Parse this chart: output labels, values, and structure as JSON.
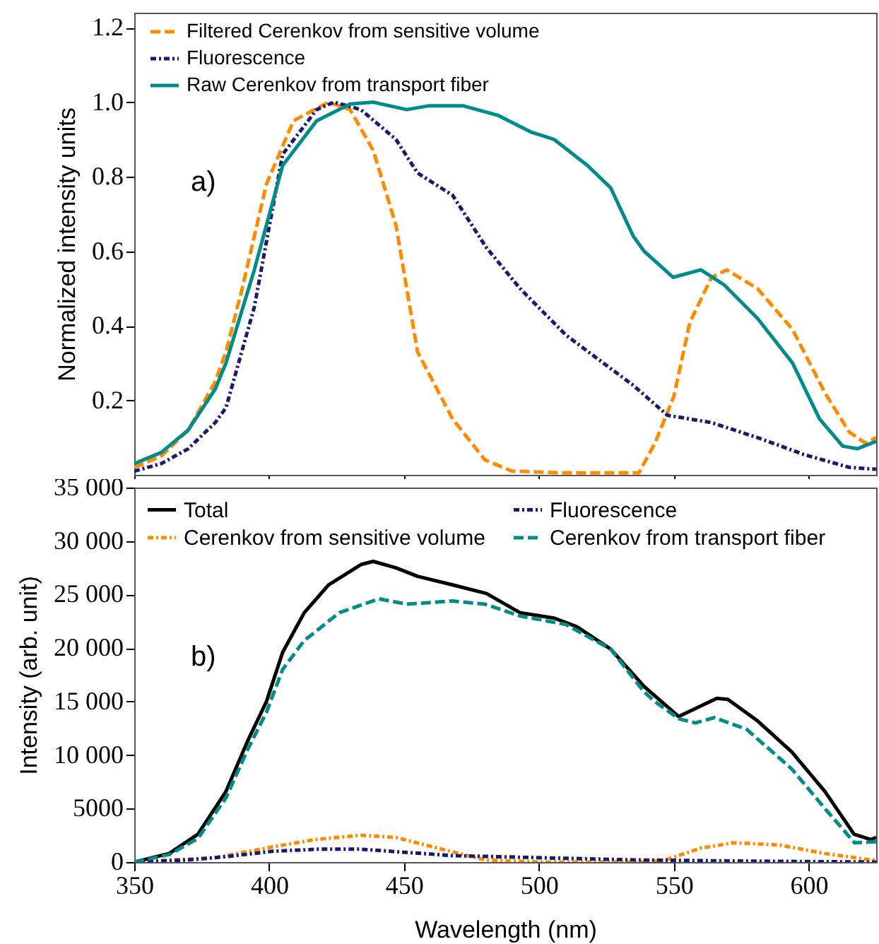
{
  "chart_data": [
    {
      "type": "line",
      "ylabel": "Normalized intensity units",
      "annotations": [
        "a)"
      ],
      "xlim": [
        350,
        625
      ],
      "xticks": [
        350,
        400,
        450,
        500,
        550,
        600
      ],
      "ylim": [
        0,
        1.24
      ],
      "yticks": [
        0.2,
        0.4,
        0.6,
        0.8,
        {
          "value": 1,
          "label": "1.0"
        },
        1.2
      ],
      "tick_labels": "y",
      "legend": "top left",
      "series": [
        {
          "name": "Filtered Cerenkov from sensitive volume",
          "color": "#ff8c00",
          "line_style": "dashed",
          "x": [
            350,
            360,
            370,
            380,
            384,
            390,
            399,
            409,
            422,
            430,
            438.6,
            447,
            455,
            468,
            480,
            490,
            510,
            537,
            543,
            550,
            556,
            564,
            569.6,
            581,
            594,
            606,
            615,
            621,
            625
          ],
          "values": [
            0.02,
            0.05,
            0.12,
            0.25,
            0.33,
            0.5,
            0.78,
            0.95,
            1.0,
            0.98,
            0.87,
            0.67,
            0.33,
            0.15,
            0.04,
            0.01,
            0.005,
            0.005,
            0.085,
            0.21,
            0.41,
            0.53,
            0.55,
            0.5,
            0.39,
            0.22,
            0.115,
            0.085,
            0.1
          ]
        },
        {
          "name": "Fluorescence",
          "color": "#191970",
          "line_style": "dotted",
          "x": [
            350,
            360,
            370,
            380,
            384,
            394.5,
            405,
            417.6,
            424,
            434,
            447,
            455,
            468,
            480.5,
            493,
            510,
            522,
            535,
            547.6,
            564,
            581,
            598,
            615,
            625
          ],
          "values": [
            0.01,
            0.03,
            0.07,
            0.14,
            0.18,
            0.45,
            0.86,
            0.98,
            1.0,
            0.98,
            0.9,
            0.81,
            0.75,
            0.61,
            0.5,
            0.375,
            0.31,
            0.24,
            0.16,
            0.14,
            0.1,
            0.055,
            0.02,
            0.015
          ]
        },
        {
          "name": "Raw Cerenkov from transport fiber",
          "color": "#008b8b",
          "line_style": "solid",
          "x": [
            350,
            360,
            370,
            380,
            384,
            394.5,
            405,
            417.6,
            430,
            438.6,
            451,
            459,
            472,
            484.7,
            497,
            505.6,
            518,
            526.6,
            535,
            539,
            549.7,
            560,
            568.6,
            581,
            594,
            604,
            612.6,
            618,
            625
          ],
          "values": [
            0.03,
            0.06,
            0.12,
            0.23,
            0.3,
            0.55,
            0.83,
            0.95,
            0.995,
            1.0,
            0.98,
            0.99,
            0.99,
            0.965,
            0.92,
            0.9,
            0.83,
            0.77,
            0.64,
            0.6,
            0.53,
            0.55,
            0.51,
            0.42,
            0.3,
            0.15,
            0.077,
            0.07,
            0.09
          ]
        }
      ]
    },
    {
      "type": "line",
      "xlabel": "Wavelength (nm)",
      "ylabel": "Intensity (arb. unit)",
      "annotations": [
        "b)"
      ],
      "xlim": [
        350,
        625
      ],
      "xticks": [
        350,
        400,
        450,
        500,
        550,
        600
      ],
      "ylim": [
        0,
        35000
      ],
      "yticks": [
        0,
        5000,
        {
          "value": 10000,
          "label": "10 000"
        },
        {
          "value": 15000,
          "label": "15 000"
        },
        {
          "value": 20000,
          "label": "20 000"
        },
        {
          "value": 25000,
          "label": "25 000"
        },
        {
          "value": 30000,
          "label": "30 000"
        },
        {
          "value": 35000,
          "label": "35 000"
        }
      ],
      "legend": "top",
      "series": [
        {
          "name": "Total",
          "color": "#000000",
          "line_style": "solid",
          "x": [
            350,
            363,
            373.6,
            384,
            392,
            399,
            405,
            413,
            422,
            434,
            438.6,
            447,
            455,
            468,
            480.5,
            493,
            505.6,
            514,
            526.6,
            539,
            551.8,
            566,
            570,
            581,
            593.7,
            606,
            616.8,
            623,
            625
          ],
          "values": [
            0,
            800,
            2600,
            6600,
            11300,
            15000,
            19600,
            23300,
            25900,
            27800,
            28100,
            27500,
            26700,
            25900,
            25100,
            23300,
            22800,
            22000,
            19900,
            16400,
            13600,
            15300,
            15200,
            13200,
            10300,
            6600,
            2600,
            2100,
            2300
          ]
        },
        {
          "name": "Cerenkov from sensitive volume",
          "color": "#ff8c00",
          "line_style": "dotted",
          "x": [
            350,
            380,
            401,
            417,
            434,
            447,
            464,
            480,
            500,
            540,
            547,
            560,
            572,
            589,
            606,
            623,
            625
          ],
          "values": [
            0,
            400,
            1400,
            2100,
            2500,
            2300,
            1200,
            200,
            0,
            0,
            200,
            1300,
            1800,
            1600,
            800,
            200,
            200
          ]
        },
        {
          "name": "Fluorescence",
          "color": "#191970",
          "line_style": "dotted",
          "x": [
            350,
            370,
            384,
            401,
            418,
            434,
            468,
            501,
            535,
            572,
            625
          ],
          "values": [
            0,
            200,
            500,
            1000,
            1200,
            1200,
            600,
            400,
            200,
            100,
            0
          ]
        },
        {
          "name": "Cerenkov from transport fiber",
          "color": "#008b8b",
          "line_style": "dashed",
          "x": [
            350,
            363,
            373.6,
            384,
            392,
            399,
            405,
            413,
            426,
            440.7,
            451,
            468,
            480,
            493,
            510,
            526.6,
            539,
            543,
            551.8,
            558,
            565,
            577,
            593.7,
            606,
            617,
            625
          ],
          "values": [
            0,
            700,
            2200,
            6000,
            10500,
            14000,
            18000,
            20700,
            23300,
            24600,
            24100,
            24400,
            24100,
            23000,
            22200,
            19900,
            15900,
            15000,
            13400,
            13000,
            13500,
            12400,
            8700,
            5000,
            1800,
            1900
          ]
        }
      ]
    }
  ]
}
